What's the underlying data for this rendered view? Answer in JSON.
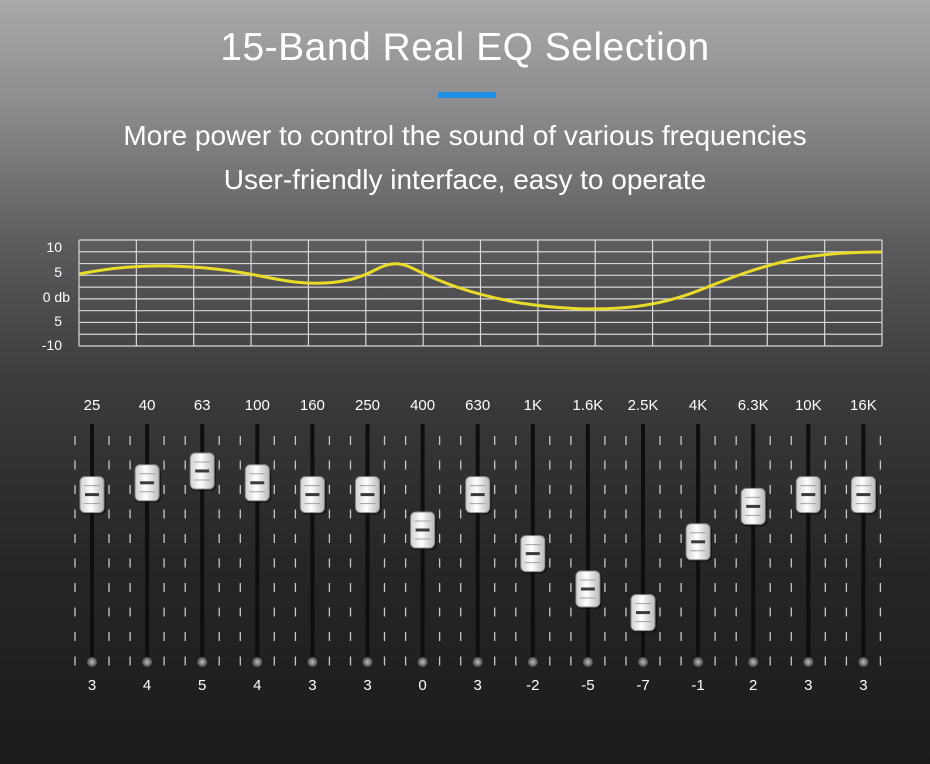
{
  "header": {
    "title": "15-Band Real EQ Selection",
    "subtitle_line1": "More power to control the sound of various frequencies",
    "subtitle_line2": "User-friendly interface, easy to operate",
    "accent_color": "#1f8fe6"
  },
  "graph": {
    "y_labels": [
      "10",
      "5",
      "0 db",
      "5",
      "-10"
    ],
    "curve_color": "#e8dc2a",
    "grid_color": "#d8d8d8"
  },
  "equalizer": {
    "bands": [
      {
        "freq": "25",
        "value": "3"
      },
      {
        "freq": "40",
        "value": "4"
      },
      {
        "freq": "63",
        "value": "5"
      },
      {
        "freq": "100",
        "value": "4"
      },
      {
        "freq": "160",
        "value": "3"
      },
      {
        "freq": "250",
        "value": "3"
      },
      {
        "freq": "400",
        "value": "0"
      },
      {
        "freq": "630",
        "value": "3"
      },
      {
        "freq": "1K",
        "value": "-2"
      },
      {
        "freq": "1.6K",
        "value": "-5"
      },
      {
        "freq": "2.5K",
        "value": "-7"
      },
      {
        "freq": "4K",
        "value": "-1"
      },
      {
        "freq": "6.3K",
        "value": "2"
      },
      {
        "freq": "10K",
        "value": "3"
      },
      {
        "freq": "16K",
        "value": "3"
      }
    ]
  }
}
